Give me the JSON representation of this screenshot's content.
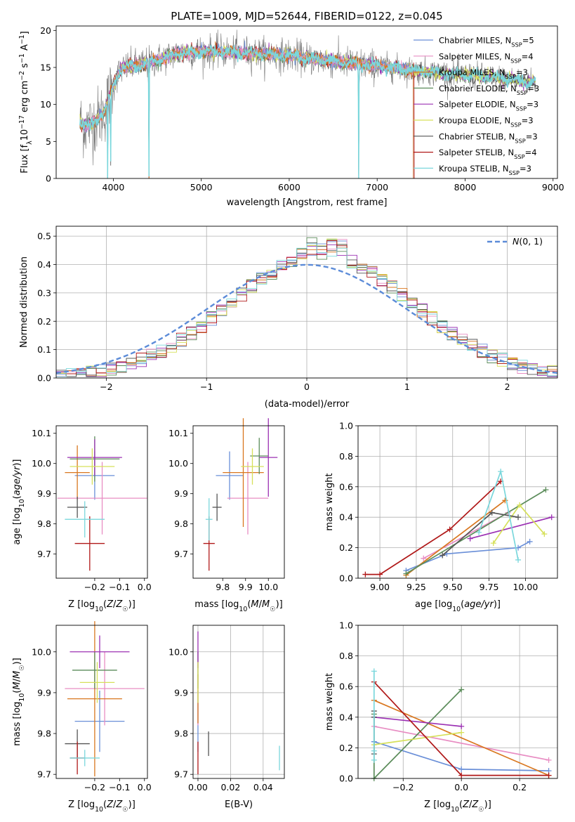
{
  "colors": {
    "Chabrier MILES": "#6a8fd8",
    "Salpeter MILES": "#e88dc3",
    "Kroupa MILES": "#d9771f",
    "Chabrier ELODIE": "#5b8c5a",
    "Salpeter ELODIE": "#9b30b3",
    "Kroupa ELODIE": "#d6e05a",
    "Chabrier STELIB": "#555555",
    "Salpeter STELIB": "#b01818",
    "Kroupa STELIB": "#7ad7dc",
    "gauss": "#5b8bd8",
    "grid": "#b0b0b0"
  },
  "chart_data": [
    {
      "id": "spectrum",
      "type": "line",
      "title": "PLATE=1009, MJD=52644, FIBERID=0122, z=0.045",
      "xlabel": "wavelength [Angstrom, rest frame]",
      "ylabel": "Flux [f_λ 10^-17 erg cm^-2 s^-1 A^-1]",
      "xlim": [
        3350,
        9050
      ],
      "ylim": [
        0,
        20.6
      ],
      "xticks": [
        4000,
        5000,
        6000,
        7000,
        8000,
        9000
      ],
      "yticks": [
        0,
        5,
        10,
        15,
        20
      ],
      "grid": false,
      "legend_position": "top-right",
      "legend": [
        {
          "name": "Chabrier MILES",
          "ssp": "5"
        },
        {
          "name": "Salpeter MILES",
          "ssp": "4"
        },
        {
          "name": "Kroupa MILES",
          "ssp": "3"
        },
        {
          "name": "Chabrier ELODIE",
          "ssp": "3"
        },
        {
          "name": "Salpeter ELODIE",
          "ssp": "3"
        },
        {
          "name": "Kroupa ELODIE",
          "ssp": "3"
        },
        {
          "name": "Chabrier STELIB",
          "ssp": "3"
        },
        {
          "name": "Salpeter STELIB",
          "ssp": "4"
        },
        {
          "name": "Kroupa STELIB",
          "ssp": "3"
        }
      ],
      "continuum": {
        "x": [
          3620,
          3700,
          3800,
          3900,
          3950,
          4000,
          4050,
          4100,
          4200,
          4300,
          4400,
          4500,
          4700,
          5000,
          5500,
          6000,
          6500,
          7000,
          7500,
          8000,
          8500,
          8800
        ],
        "y": [
          7.5,
          7.0,
          7.8,
          9.0,
          11.0,
          12.5,
          14.0,
          14.8,
          15.2,
          15.4,
          15.6,
          16.0,
          16.8,
          17.2,
          17.0,
          16.6,
          15.8,
          15.2,
          14.5,
          14.0,
          13.4,
          13.0
        ]
      },
      "data_range": [
        3620,
        8800
      ],
      "model_cutoffs": {
        "Chabrier MILES": 7410,
        "Salpeter MILES": 7410,
        "Kroupa MILES": 7410,
        "Salpeter STELIB": 7420
      },
      "dips": [
        {
          "x": 3935,
          "depth": 10.5
        },
        {
          "x": 3970,
          "depth": 9.0
        },
        {
          "x": 4405,
          "depth": 16.0
        },
        {
          "x": 6790,
          "depth": 15.5
        }
      ]
    },
    {
      "id": "residuals",
      "type": "line",
      "xlabel": "(data-model)/error",
      "ylabel": "Normed distribution",
      "xlim": [
        -2.5,
        2.5
      ],
      "ylim": [
        0,
        0.535
      ],
      "xticks": [
        -2,
        -1,
        0,
        1,
        2
      ],
      "yticks": [
        0.0,
        0.1,
        0.2,
        0.3,
        0.4,
        0.5
      ],
      "grid": true,
      "legend_position": "top-right",
      "gauss_label": "N(0,1)",
      "bin_width": 0.1
    },
    {
      "id": "age-vs-Z",
      "type": "scatter",
      "xlabel": "Z [log10(Z/Z☉)]",
      "ylabel": "age [log10(age/yr)]",
      "xlim": [
        -0.355,
        0.012
      ],
      "ylim": [
        9.62,
        10.125
      ],
      "xticks": [
        -0.2,
        -0.1,
        0.0
      ],
      "yticks": [
        9.7,
        9.8,
        9.9,
        10.0,
        10.1
      ],
      "grid": false,
      "points": [
        {
          "model": "Chabrier MILES",
          "x": -0.2,
          "y": 9.96,
          "xerr": 0.08,
          "yerr": 0.08
        },
        {
          "model": "Salpeter MILES",
          "x": -0.17,
          "y": 9.885,
          "xerr": 0.18,
          "yerr": 0.12
        },
        {
          "model": "Kroupa MILES",
          "x": -0.27,
          "y": 9.97,
          "xerr": 0.05,
          "yerr": 0.09
        },
        {
          "model": "Chabrier ELODIE",
          "x": -0.2,
          "y": 10.015,
          "xerr": 0.1,
          "yerr": 0.075
        },
        {
          "model": "Salpeter ELODIE",
          "x": -0.2,
          "y": 10.02,
          "xerr": 0.11,
          "yerr": 0.06
        },
        {
          "model": "Kroupa ELODIE",
          "x": -0.21,
          "y": 9.99,
          "xerr": 0.09,
          "yerr": 0.06
        },
        {
          "model": "Chabrier STELIB",
          "x": -0.27,
          "y": 9.855,
          "xerr": 0.04,
          "yerr": 0.035
        },
        {
          "model": "Salpeter STELIB",
          "x": -0.22,
          "y": 9.735,
          "xerr": 0.06,
          "yerr": 0.09
        },
        {
          "model": "Kroupa STELIB",
          "x": -0.24,
          "y": 9.815,
          "xerr": 0.08,
          "yerr": 0.06
        }
      ]
    },
    {
      "id": "age-vs-mass",
      "type": "scatter",
      "xlabel": "mass [log10(M/M☉)]",
      "ylabel": "",
      "xlim": [
        9.67,
        10.07
      ],
      "ylim": [
        9.62,
        10.125
      ],
      "xticks": [
        9.8,
        9.9,
        10.0
      ],
      "yticks": [
        9.7,
        9.8,
        9.9,
        10.0,
        10.1
      ],
      "grid": false,
      "points": [
        {
          "model": "Chabrier MILES",
          "x": 9.83,
          "y": 9.96,
          "xerr": 0.06,
          "yerr": 0.08
        },
        {
          "model": "Salpeter MILES",
          "x": 9.91,
          "y": 9.885,
          "xerr": 0.09,
          "yerr": 0.12
        },
        {
          "model": "Kroupa MILES",
          "x": 9.89,
          "y": 9.97,
          "xerr": 0.09,
          "yerr": 0.18
        },
        {
          "model": "Chabrier ELODIE",
          "x": 9.96,
          "y": 10.025,
          "xerr": 0.04,
          "yerr": 0.06
        },
        {
          "model": "Salpeter ELODIE",
          "x": 10.0,
          "y": 10.02,
          "xerr": 0.04,
          "yerr": 0.13
        },
        {
          "model": "Kroupa ELODIE",
          "x": 9.93,
          "y": 9.99,
          "xerr": 0.05,
          "yerr": 0.06
        },
        {
          "model": "Chabrier STELIB",
          "x": 9.775,
          "y": 9.855,
          "xerr": 0.02,
          "yerr": 0.045
        },
        {
          "model": "Salpeter STELIB",
          "x": 9.74,
          "y": 9.735,
          "xerr": 0.025,
          "yerr": 0.09
        },
        {
          "model": "Kroupa STELIB",
          "x": 9.74,
          "y": 9.815,
          "xerr": 0.015,
          "yerr": 0.07
        }
      ]
    },
    {
      "id": "weight-vs-age",
      "type": "line",
      "xlabel": "age [log10(age/yr)]",
      "ylabel": "mass weight",
      "xlim": [
        8.85,
        10.22
      ],
      "ylim": [
        0.0,
        1.0
      ],
      "xticks": [
        9.0,
        9.25,
        9.5,
        9.75,
        10.0
      ],
      "yticks": [
        0.0,
        0.2,
        0.4,
        0.6,
        0.8,
        1.0
      ],
      "grid": true,
      "series": [
        {
          "model": "Chabrier MILES",
          "x": [
            9.18,
            9.46,
            9.95,
            10.03
          ],
          "y": [
            0.05,
            0.16,
            0.2,
            0.24
          ]
        },
        {
          "model": "Salpeter MILES",
          "x": [
            9.3,
            9.88
          ],
          "y": [
            0.13,
            0.43
          ]
        },
        {
          "model": "Kroupa MILES",
          "x": [
            9.18,
            9.86
          ],
          "y": [
            0.02,
            0.51
          ]
        },
        {
          "model": "Chabrier ELODIE",
          "x": [
            9.18,
            10.14
          ],
          "y": [
            0.03,
            0.58
          ]
        },
        {
          "model": "Salpeter ELODIE",
          "x": [
            9.62,
            10.18
          ],
          "y": [
            0.26,
            0.4
          ]
        },
        {
          "model": "Kroupa ELODIE",
          "x": [
            9.78,
            9.96,
            10.13
          ],
          "y": [
            0.23,
            0.48,
            0.29
          ]
        },
        {
          "model": "Chabrier STELIB",
          "x": [
            9.43,
            9.77,
            9.95
          ],
          "y": [
            0.15,
            0.43,
            0.4
          ]
        },
        {
          "model": "Salpeter STELIB",
          "x": [
            8.9,
            9.0,
            9.48,
            9.83
          ],
          "y": [
            0.025,
            0.025,
            0.32,
            0.635
          ]
        },
        {
          "model": "Kroupa STELIB",
          "x": [
            9.68,
            9.83,
            9.95
          ],
          "y": [
            0.3,
            0.7,
            0.12
          ]
        }
      ]
    },
    {
      "id": "mass-vs-Z",
      "type": "scatter",
      "xlabel": "Z [log10(Z/Z☉)]",
      "ylabel": "mass [log10(M/M☉)]",
      "xlim": [
        -0.355,
        0.012
      ],
      "ylim": [
        9.69,
        10.065
      ],
      "xticks": [
        -0.2,
        -0.1,
        0.0
      ],
      "yticks": [
        9.7,
        9.8,
        9.9,
        10.0
      ],
      "grid": false,
      "points": [
        {
          "model": "Chabrier MILES",
          "x": -0.18,
          "y": 9.83,
          "xerr": 0.1,
          "yerr": 0.075
        },
        {
          "model": "Salpeter MILES",
          "x": -0.16,
          "y": 9.91,
          "xerr": 0.16,
          "yerr": 0.09
        },
        {
          "model": "Kroupa MILES",
          "x": -0.2,
          "y": 9.885,
          "xerr": 0.11,
          "yerr": 0.19
        },
        {
          "model": "Chabrier ELODIE",
          "x": -0.2,
          "y": 9.955,
          "xerr": 0.09,
          "yerr": 0.045
        },
        {
          "model": "Salpeter ELODIE",
          "x": -0.18,
          "y": 10.0,
          "xerr": 0.12,
          "yerr": 0.04
        },
        {
          "model": "Kroupa ELODIE",
          "x": -0.19,
          "y": 9.925,
          "xerr": 0.07,
          "yerr": 0.05
        },
        {
          "model": "Chabrier STELIB",
          "x": -0.27,
          "y": 9.775,
          "xerr": 0.05,
          "yerr": 0.035
        },
        {
          "model": "Salpeter STELIB",
          "x": -0.27,
          "y": 9.74,
          "xerr": 0.03,
          "yerr": 0.04
        },
        {
          "model": "Kroupa STELIB",
          "x": -0.24,
          "y": 9.74,
          "xerr": 0.06,
          "yerr": 0.02
        }
      ]
    },
    {
      "id": "mass-vs-EBV",
      "type": "scatter",
      "xlabel": "E(B-V)",
      "ylabel": "",
      "xlim": [
        -0.003,
        0.053
      ],
      "ylim": [
        9.69,
        10.065
      ],
      "xticks": [
        0.0,
        0.02,
        0.04
      ],
      "xticklabels": [
        "0.00",
        "0.02",
        "0.04"
      ],
      "yticks": [
        9.7,
        9.8,
        9.9,
        10.0
      ],
      "grid": true,
      "points": [
        {
          "model": "Chabrier MILES",
          "x": 0.0,
          "y": 9.83,
          "xerr": 0.0,
          "yerr": 0.075
        },
        {
          "model": "Salpeter MILES",
          "x": 0.0,
          "y": 9.91,
          "xerr": 0.0,
          "yerr": 0.09
        },
        {
          "model": "Kroupa MILES",
          "x": 0.0,
          "y": 9.885,
          "xerr": 0.0,
          "yerr": 0.06
        },
        {
          "model": "Chabrier ELODIE",
          "x": 0.0,
          "y": 9.955,
          "xerr": 0.0,
          "yerr": 0.045
        },
        {
          "model": "Salpeter ELODIE",
          "x": 0.0,
          "y": 10.005,
          "xerr": 0.0,
          "yerr": 0.045
        },
        {
          "model": "Kroupa ELODIE",
          "x": 0.0,
          "y": 9.925,
          "xerr": 0.0,
          "yerr": 0.05
        },
        {
          "model": "Chabrier STELIB",
          "x": 0.0065,
          "y": 9.775,
          "xerr": 0.0,
          "yerr": 0.03
        },
        {
          "model": "Salpeter STELIB",
          "x": 0.0,
          "y": 9.74,
          "xerr": 0.0,
          "yerr": 0.04
        },
        {
          "model": "Kroupa STELIB",
          "x": 0.05,
          "y": 9.74,
          "xerr": 0.0,
          "yerr": 0.03
        }
      ]
    },
    {
      "id": "weight-vs-Z",
      "type": "line",
      "xlabel": "Z [log10(Z/Z☉)]",
      "ylabel": "mass weight",
      "xlim": [
        -0.355,
        0.33
      ],
      "ylim": [
        0.0,
        1.0
      ],
      "xticks": [
        -0.2,
        0.0,
        0.2
      ],
      "yticks": [
        0.0,
        0.2,
        0.4,
        0.6,
        0.8,
        1.0
      ],
      "grid": true,
      "series": [
        {
          "model": "Chabrier MILES",
          "x": [
            -0.3,
            0.0,
            0.3
          ],
          "y": [
            0.24,
            0.06,
            0.05
          ]
        },
        {
          "model": "Salpeter MILES",
          "x": [
            -0.3,
            0.3
          ],
          "y": [
            0.34,
            0.12
          ]
        },
        {
          "model": "Kroupa MILES",
          "x": [
            -0.3,
            0.3
          ],
          "y": [
            0.51,
            0.02
          ]
        },
        {
          "model": "Chabrier ELODIE",
          "x": [
            -0.3,
            -0.3,
            0.0
          ],
          "y": [
            0.42,
            0.0,
            0.58
          ]
        },
        {
          "model": "Salpeter ELODIE",
          "x": [
            -0.3,
            0.0
          ],
          "y": [
            0.4,
            0.34
          ]
        },
        {
          "model": "Kroupa ELODIE",
          "x": [
            -0.3,
            0.0
          ],
          "y": [
            0.22,
            0.3
          ]
        },
        {
          "model": "Chabrier STELIB",
          "x": [
            -0.3,
            -0.3,
            -0.3
          ],
          "y": [
            0.44,
            0.4,
            0.16
          ]
        },
        {
          "model": "Salpeter STELIB",
          "x": [
            -0.3,
            0.0,
            0.3
          ],
          "y": [
            0.63,
            0.02,
            0.02
          ]
        },
        {
          "model": "Kroupa STELIB",
          "x": [
            -0.3,
            -0.3,
            -0.3
          ],
          "y": [
            0.7,
            0.18,
            0.12
          ]
        }
      ]
    }
  ]
}
